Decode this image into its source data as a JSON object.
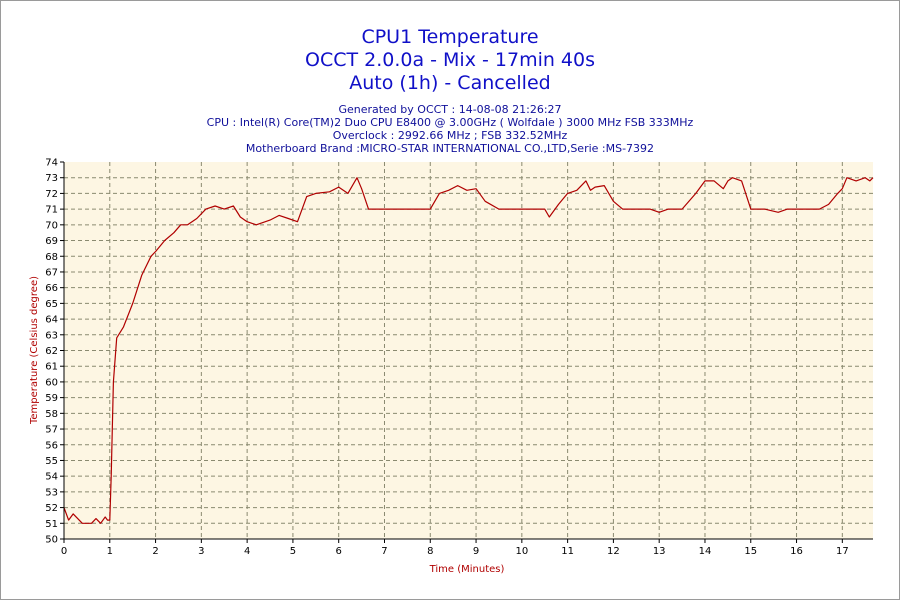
{
  "header": {
    "title_lines": [
      "CPU1 Temperature",
      "OCCT 2.0.0a - Mix - 17min 40s",
      "Auto (1h) - Cancelled"
    ],
    "info_lines": [
      "Generated by OCCT : 14-08-08 21:26:27",
      "CPU : Intel(R) Core(TM)2 Duo CPU E8400 @ 3.00GHz ( Wolfdale ) 3000 MHz FSB 333MHz",
      "Overclock : 2992.66 MHz ; FSB 332.52MHz",
      "Motherboard Brand :MICRO-STAR INTERNATIONAL CO.,LTD,Serie :MS-7392"
    ]
  },
  "colors": {
    "title": "#1010c8",
    "info": "#10109a",
    "line": "#b00000",
    "plot_bg": "#fdf6e3",
    "grid": "#8a8a70"
  },
  "chart_data": {
    "type": "line",
    "xlabel": "Time (Minutes)",
    "ylabel": "Temperature (Celsius degree)",
    "xlim": [
      0,
      17.67
    ],
    "ylim": [
      50,
      74
    ],
    "x_ticks": [
      "0",
      "1",
      "2",
      "3",
      "4",
      "5",
      "6",
      "7",
      "8",
      "9",
      "10",
      "11",
      "12",
      "13",
      "14",
      "15",
      "16",
      "17"
    ],
    "y_ticks": [
      "50",
      "51",
      "52",
      "53",
      "54",
      "55",
      "56",
      "57",
      "58",
      "59",
      "60",
      "61",
      "62",
      "63",
      "64",
      "65",
      "66",
      "67",
      "68",
      "69",
      "70",
      "71",
      "72",
      "73",
      "74"
    ],
    "grid": true,
    "series": [
      {
        "color": "#b00000",
        "x": [
          0,
          0.1,
          0.2,
          0.3,
          0.4,
          0.5,
          0.6,
          0.7,
          0.8,
          0.9,
          0.95,
          1.0,
          1.03,
          1.08,
          1.15,
          1.3,
          1.5,
          1.7,
          1.9,
          2.0,
          2.2,
          2.4,
          2.55,
          2.7,
          2.9,
          3.1,
          3.3,
          3.5,
          3.7,
          3.85,
          4.0,
          4.2,
          4.5,
          4.7,
          4.9,
          5.1,
          5.3,
          5.5,
          5.8,
          6.0,
          6.2,
          6.4,
          6.5,
          6.65,
          7.0,
          7.5,
          8.0,
          8.2,
          8.4,
          8.6,
          8.8,
          9.0,
          9.2,
          9.5,
          10.0,
          10.5,
          10.6,
          10.8,
          11.0,
          11.2,
          11.4,
          11.5,
          11.6,
          11.8,
          12.0,
          12.2,
          12.5,
          12.8,
          13.0,
          13.2,
          13.5,
          13.8,
          14.0,
          14.2,
          14.4,
          14.5,
          14.6,
          14.8,
          15.0,
          15.3,
          15.6,
          15.8,
          16.0,
          16.3,
          16.5,
          16.7,
          16.9,
          17.0,
          17.1,
          17.3,
          17.5,
          17.6,
          17.67
        ],
        "values": [
          52,
          51.2,
          51.6,
          51.3,
          51,
          51,
          51,
          51.3,
          51,
          51.4,
          51.2,
          51.2,
          54,
          60,
          62.8,
          63.5,
          65,
          66.8,
          68,
          68.3,
          69,
          69.5,
          70,
          70,
          70.4,
          71,
          71.2,
          71,
          71.2,
          70.5,
          70.2,
          70,
          70.3,
          70.6,
          70.4,
          70.2,
          71.8,
          72,
          72.1,
          72.4,
          72,
          73,
          72.3,
          71,
          71,
          71,
          71,
          72,
          72.2,
          72.5,
          72.2,
          72.3,
          71.5,
          71,
          71,
          71,
          70.5,
          71.3,
          72,
          72.2,
          72.8,
          72.2,
          72.4,
          72.5,
          71.5,
          71,
          71,
          71,
          70.8,
          71,
          71,
          72,
          72.8,
          72.8,
          72.3,
          72.8,
          73,
          72.8,
          71,
          71,
          70.8,
          71,
          71,
          71,
          71,
          71.3,
          72,
          72.3,
          73,
          72.8,
          73,
          72.8,
          73
        ]
      }
    ]
  }
}
